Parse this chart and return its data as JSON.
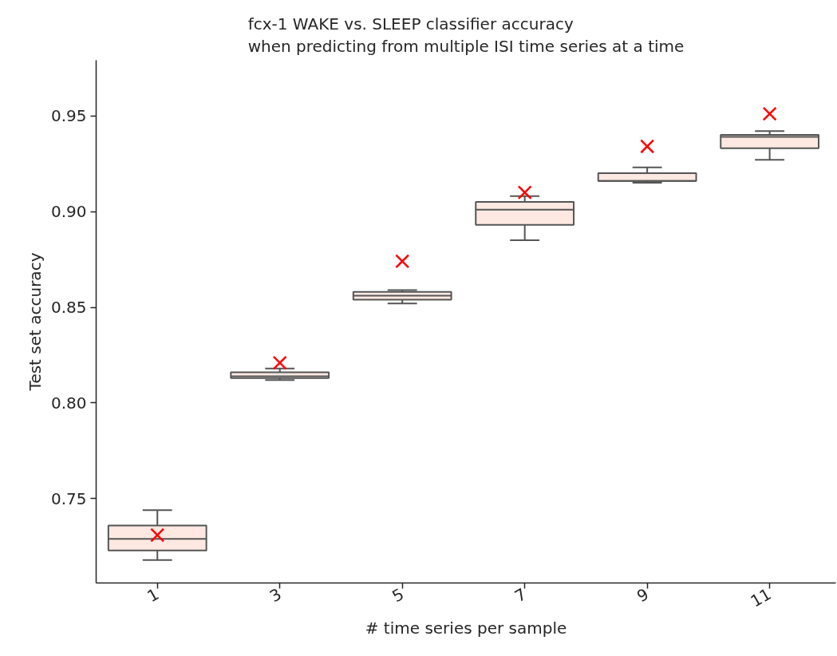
{
  "chart_data": {
    "type": "box",
    "title": "fcx-1 WAKE vs. SLEEP classifier accuracy\nwhen predicting from multiple ISI time series at a time",
    "xlabel": "# time series per sample",
    "ylabel": "Test set accuracy",
    "categories": [
      "1",
      "3",
      "5",
      "7",
      "9",
      "11"
    ],
    "ylim": [
      0.706,
      0.979
    ],
    "yticks": [
      {
        "value": 0.75,
        "label": "0.75"
      },
      {
        "value": 0.8,
        "label": "0.80"
      },
      {
        "value": 0.85,
        "label": "0.85"
      },
      {
        "value": 0.9,
        "label": "0.90"
      },
      {
        "value": 0.95,
        "label": "0.95"
      }
    ],
    "grid": false,
    "marker": "cross",
    "series": [
      {
        "color": "#fde9e2",
        "boxes": [
          {
            "low": 0.718,
            "q1": 0.723,
            "median": 0.729,
            "q3": 0.736,
            "high": 0.744
          },
          {
            "low": 0.812,
            "q1": 0.813,
            "median": 0.814,
            "q3": 0.816,
            "high": 0.818
          },
          {
            "low": 0.852,
            "q1": 0.854,
            "median": 0.856,
            "q3": 0.858,
            "high": 0.859
          },
          {
            "low": 0.885,
            "q1": 0.893,
            "median": 0.901,
            "q3": 0.905,
            "high": 0.908
          },
          {
            "low": 0.915,
            "q1": 0.916,
            "median": 0.916,
            "q3": 0.92,
            "high": 0.923
          },
          {
            "low": 0.927,
            "q1": 0.933,
            "median": 0.939,
            "q3": 0.94,
            "high": 0.942
          }
        ]
      },
      {
        "type": "scatter",
        "color": "#ff0000",
        "x": [
          "1",
          "3",
          "5",
          "7",
          "9",
          "11"
        ],
        "values": [
          0.731,
          0.821,
          0.874,
          0.91,
          0.934,
          0.951
        ]
      }
    ]
  }
}
